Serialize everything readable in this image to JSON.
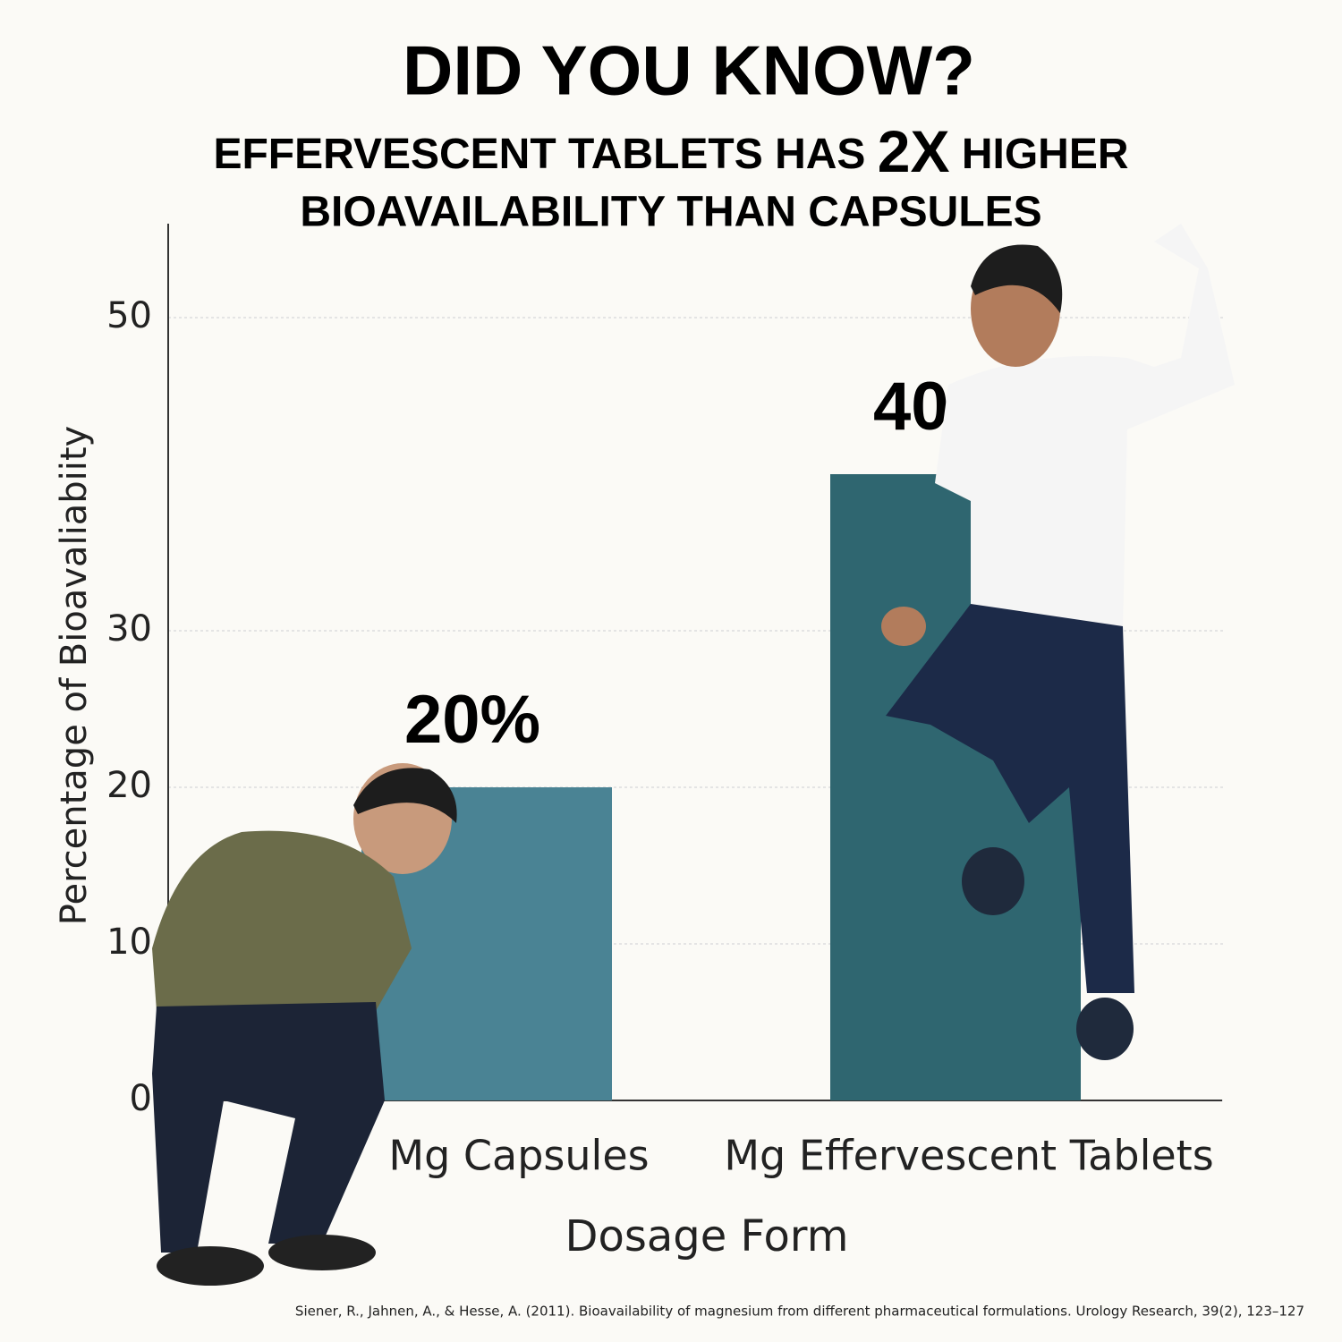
{
  "chart_data": {
    "type": "bar",
    "title": "DID YOU KNOW?",
    "subtitle": {
      "before": "EFFERVESCENT TABLETS HAS",
      "emphasis": "2X",
      "after": "HIGHER",
      "line2": "BIOAVAILABILITY THAN CAPSULES"
    },
    "y_label": "Percentage of Bioavaliabiity",
    "x_label": "Dosage Form",
    "categories": [
      "Mg Capsules",
      "Mg Effervescent Tablets"
    ],
    "values": [
      20,
      40
    ],
    "value_labels": [
      "20%",
      "40%"
    ],
    "colors": [
      "#4a8394",
      "#2f6670"
    ],
    "ylim": [
      0,
      56
    ],
    "yticks": [
      0,
      10,
      20,
      30,
      50
    ],
    "grid": true,
    "source": "Siener, R., Jahnen, A., & Hesse, A. (2011). Bioavailability of magnesium from different pharmaceutical formulations. Urology Research, 39(2), 123–127"
  }
}
